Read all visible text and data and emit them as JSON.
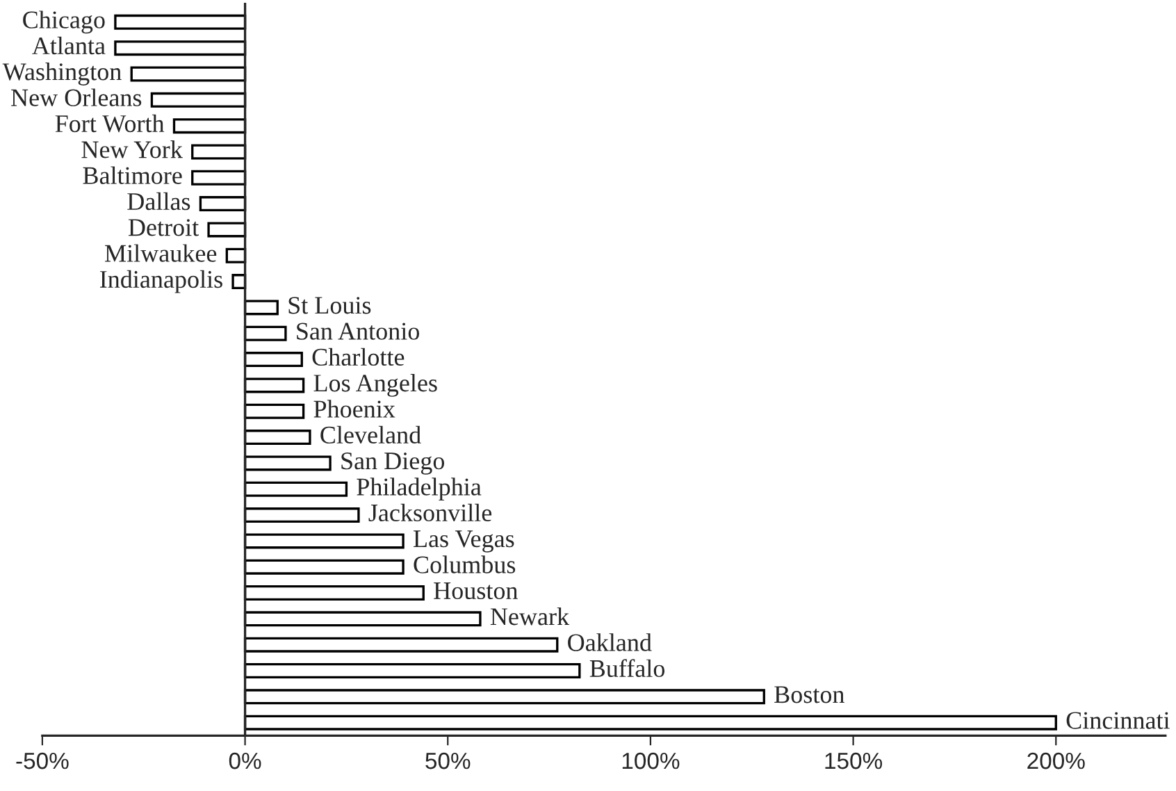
{
  "chart_data": {
    "type": "bar",
    "orientation": "horizontal",
    "color": "#ffffff",
    "categories": [
      "Chicago",
      "Atlanta",
      "Washington",
      "New Orleans",
      "Fort Worth",
      "New York",
      "Baltimore",
      "Dallas",
      "Detroit",
      "Milwaukee",
      "Indianapolis",
      "St Louis",
      "San Antonio",
      "Charlotte",
      "Los Angeles",
      "Phoenix",
      "Cleveland",
      "San Diego",
      "Philadelphia",
      "Jacksonville",
      "Las Vegas",
      "Columbus",
      "Houston",
      "Newark",
      "Oakland",
      "Buffalo",
      "Boston",
      "Cincinnati"
    ],
    "values": [
      -32,
      -32,
      -28,
      -23,
      -17.5,
      -13,
      -13,
      -11,
      -9,
      -4.5,
      -3,
      8,
      10,
      14,
      14.4,
      14.4,
      16,
      21,
      25,
      28,
      39,
      39,
      44,
      58,
      77,
      82.5,
      128,
      200
    ],
    "xlim": [
      -50,
      227
    ],
    "xticks": [
      {
        "value": -50,
        "label": "-50%"
      },
      {
        "value": 0,
        "label": "0%"
      },
      {
        "value": 50,
        "label": "50%"
      },
      {
        "value": 100,
        "label": "100%"
      },
      {
        "value": 150,
        "label": "150%"
      },
      {
        "value": 200,
        "label": "200%"
      }
    ]
  }
}
